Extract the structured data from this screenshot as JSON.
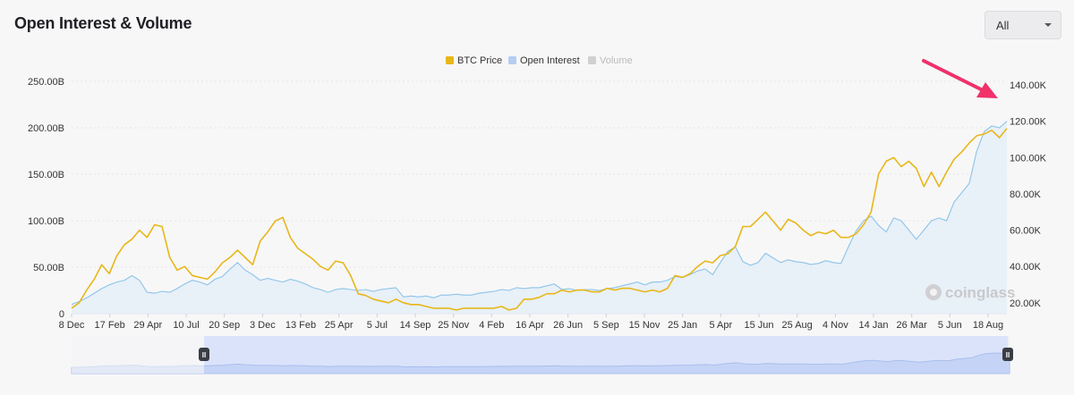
{
  "header": {
    "title": "Open Interest & Volume"
  },
  "range_select": {
    "value": "All"
  },
  "watermark": {
    "text": "coinglass"
  },
  "colors": {
    "price": "#e8b718",
    "oi_line": "#8cc4e8",
    "oi_fill": "#e3eef8",
    "volume": "#cfcfcf",
    "arrow": "#f0316a"
  },
  "chart_data": {
    "type": "line",
    "legend": [
      {
        "name": "BTC Price",
        "color": "#e8b718",
        "active": true
      },
      {
        "name": "Open Interest",
        "color": "#b5cdf0",
        "active": true
      },
      {
        "name": "Volume",
        "color": "#d0d0d0",
        "active": false
      }
    ],
    "x_ticks": [
      "8 Dec",
      "17 Feb",
      "29 Apr",
      "10 Jul",
      "20 Sep",
      "3 Dec",
      "13 Feb",
      "25 Apr",
      "5 Jul",
      "14 Sep",
      "25 Nov",
      "4 Feb",
      "16 Apr",
      "26 Jun",
      "5 Sep",
      "15 Nov",
      "25 Jan",
      "5 Apr",
      "15 Jun",
      "25 Aug",
      "4 Nov",
      "14 Jan",
      "26 Mar",
      "5 Jun",
      "18 Aug"
    ],
    "y_left_ticks": [
      "0",
      "50.00B",
      "100.00B",
      "150.00B",
      "200.00B",
      "250.00B"
    ],
    "y_left_range": [
      0,
      250
    ],
    "y_right_ticks": [
      "20.00K",
      "40.00K",
      "60.00K",
      "80.00K",
      "100.00K",
      "120.00K",
      "140.00K"
    ],
    "y_right_range": [
      14,
      142
    ],
    "series": [
      {
        "name": "BTC Price",
        "axis": "right",
        "values": [
          17,
          20,
          27,
          33,
          41,
          36,
          46,
          52,
          55,
          60,
          56,
          63,
          62,
          45,
          38,
          40,
          35,
          34,
          33,
          37,
          42,
          45,
          49,
          45,
          41,
          54,
          59,
          65,
          67,
          56,
          50,
          47,
          44,
          40,
          38,
          43,
          42,
          35,
          25,
          24,
          22,
          21,
          20,
          22,
          20,
          19,
          19,
          18,
          17,
          17,
          17,
          16,
          17,
          17,
          17,
          17,
          17,
          18,
          16,
          17,
          22,
          22,
          23,
          25,
          25,
          27,
          26,
          27,
          27,
          26,
          26,
          28,
          27,
          28,
          28,
          27,
          26,
          27,
          26,
          28,
          35,
          34,
          36,
          40,
          43,
          42,
          46,
          47,
          51,
          62,
          62,
          66,
          70,
          65,
          60,
          66,
          64,
          60,
          57,
          59,
          58,
          60,
          56,
          56,
          58,
          63,
          70,
          91,
          98,
          100,
          95,
          98,
          94,
          84,
          92,
          84,
          92,
          99,
          103,
          108,
          112,
          113,
          115,
          111,
          116
        ],
        "color": "#e8b718"
      },
      {
        "name": "Open Interest",
        "axis": "left",
        "values": [
          10,
          13,
          17,
          22,
          27,
          31,
          34,
          36,
          41,
          36,
          23,
          22,
          24,
          23,
          27,
          32,
          36,
          34,
          31,
          37,
          40,
          48,
          55,
          47,
          42,
          36,
          38,
          36,
          34,
          37,
          35,
          32,
          28,
          26,
          23,
          26,
          27,
          26,
          25,
          26,
          24,
          26,
          27,
          28,
          18,
          19,
          18,
          19,
          17,
          20,
          20,
          21,
          20,
          20,
          22,
          23,
          24,
          26,
          25,
          28,
          27,
          28,
          28,
          30,
          32,
          26,
          27,
          25,
          26,
          26,
          25,
          27,
          28,
          30,
          32,
          34,
          31,
          34,
          34,
          36,
          40,
          39,
          42,
          46,
          48,
          42,
          55,
          67,
          72,
          56,
          52,
          55,
          65,
          60,
          55,
          58,
          56,
          55,
          53,
          54,
          57,
          55,
          54,
          72,
          89,
          100,
          105,
          95,
          88,
          103,
          100,
          90,
          80,
          90,
          100,
          103,
          100,
          120,
          130,
          140,
          175,
          196,
          202,
          200,
          207
        ],
        "color": "#8cc4e8"
      }
    ],
    "navigator": {
      "handles": [
        "II",
        "II"
      ]
    }
  }
}
